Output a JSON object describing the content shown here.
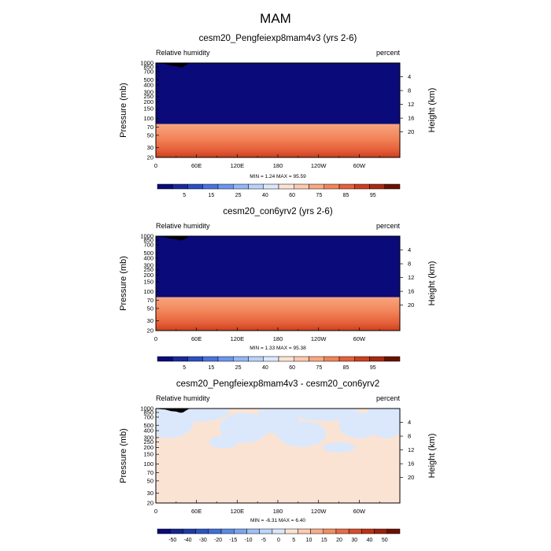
{
  "main_title": "MAM",
  "chart_data": [
    {
      "type": "heatmap",
      "title": "cesm20_Pengfeiexp8mam4v3 (yrs 2-6)",
      "left_label": "Relative humidity",
      "right_label": "percent",
      "ylabel": "Pressure (mb)",
      "ylabel_right": "Height (km)",
      "x_ticks": [
        "0",
        "60E",
        "120E",
        "180",
        "120W",
        "60W"
      ],
      "x_tick_lons": [
        0,
        60,
        120,
        180,
        240,
        300
      ],
      "xlim": [
        0,
        360
      ],
      "y_ticks": [
        "20",
        "30",
        "50",
        "70",
        "100",
        "150",
        "200",
        "250",
        "300",
        "400",
        "500",
        "700",
        "850",
        "1000"
      ],
      "y_tick_levels": [
        20,
        30,
        50,
        70,
        100,
        150,
        200,
        250,
        300,
        400,
        500,
        700,
        850,
        1000
      ],
      "right_ticks": [
        "20",
        "16",
        "12",
        "8",
        "4"
      ],
      "right_tick_km": [
        20,
        16,
        12,
        8,
        4
      ],
      "ylim": [
        1000,
        20
      ],
      "stats": "MIN =   1.24  MAX =  95.59",
      "min": 1.24,
      "max": 95.59
    },
    {
      "type": "heatmap",
      "title": "cesm20_con6yrv2 (yrs 2-6)",
      "left_label": "Relative humidity",
      "right_label": "percent",
      "ylabel": "Pressure (mb)",
      "ylabel_right": "Height (km)",
      "x_ticks": [
        "0",
        "60E",
        "120E",
        "180",
        "120W",
        "60W"
      ],
      "x_tick_lons": [
        0,
        60,
        120,
        180,
        240,
        300
      ],
      "xlim": [
        0,
        360
      ],
      "y_ticks": [
        "20",
        "30",
        "50",
        "70",
        "100",
        "150",
        "200",
        "250",
        "300",
        "400",
        "500",
        "700",
        "850",
        "1000"
      ],
      "y_tick_levels": [
        20,
        30,
        50,
        70,
        100,
        150,
        200,
        250,
        300,
        400,
        500,
        700,
        850,
        1000
      ],
      "right_ticks": [
        "20",
        "16",
        "12",
        "8",
        "4"
      ],
      "right_tick_km": [
        20,
        16,
        12,
        8,
        4
      ],
      "ylim": [
        1000,
        20
      ],
      "stats": "MIN =   1.33  MAX =  95.38",
      "min": 1.33,
      "max": 95.38
    },
    {
      "type": "heatmap",
      "title": "cesm20_Pengfeiexp8mam4v3 - cesm20_con6yrv2",
      "left_label": "Relative humidity",
      "right_label": "percent",
      "ylabel": "Pressure (mb)",
      "ylabel_right": "Height (km)",
      "x_ticks": [
        "0",
        "60E",
        "120E",
        "180",
        "120W",
        "60W"
      ],
      "x_tick_lons": [
        0,
        60,
        120,
        180,
        240,
        300
      ],
      "xlim": [
        0,
        360
      ],
      "y_ticks": [
        "20",
        "30",
        "50",
        "70",
        "100",
        "150",
        "200",
        "250",
        "300",
        "400",
        "500",
        "700",
        "850",
        "1000"
      ],
      "y_tick_levels": [
        20,
        30,
        50,
        70,
        100,
        150,
        200,
        250,
        300,
        400,
        500,
        700,
        850,
        1000
      ],
      "right_ticks": [
        "20",
        "16",
        "12",
        "8",
        "4"
      ],
      "right_tick_km": [
        20,
        16,
        12,
        8,
        4
      ],
      "ylim": [
        1000,
        20
      ],
      "stats": "MIN =  -6.31  MAX =   6.40",
      "min": -6.31,
      "max": 6.4
    }
  ],
  "colorbar_rh": {
    "colors": [
      "#0a0a7a",
      "#1a2a9e",
      "#2b4fc4",
      "#4a73e0",
      "#6d95ee",
      "#93b6f5",
      "#b8d2fa",
      "#dbe8fb",
      "#fbe3d4",
      "#fcc9ae",
      "#f9a882",
      "#f28358",
      "#e5603a",
      "#cc3f1e",
      "#a82a10",
      "#6b1000"
    ],
    "labels": [
      "5",
      "15",
      "25",
      "40",
      "60",
      "75",
      "85",
      "95"
    ]
  },
  "colorbar_diff": {
    "colors": [
      "#0a0a7a",
      "#15238e",
      "#1e3aa8",
      "#2b55c2",
      "#3f70d8",
      "#5a8ae6",
      "#7aa5f0",
      "#9dc0f6",
      "#bed6fa",
      "#dbe8fb",
      "#fbe3d4",
      "#fccbb0",
      "#f9ae88",
      "#f38e62",
      "#e96c44",
      "#d84b2a",
      "#bc3216",
      "#9c200a",
      "#6b1000"
    ],
    "labels": [
      "-50",
      "-40",
      "-30",
      "-20",
      "-15",
      "-10",
      "-5",
      "0",
      "5",
      "10",
      "15",
      "20",
      "30",
      "40",
      "50"
    ]
  }
}
